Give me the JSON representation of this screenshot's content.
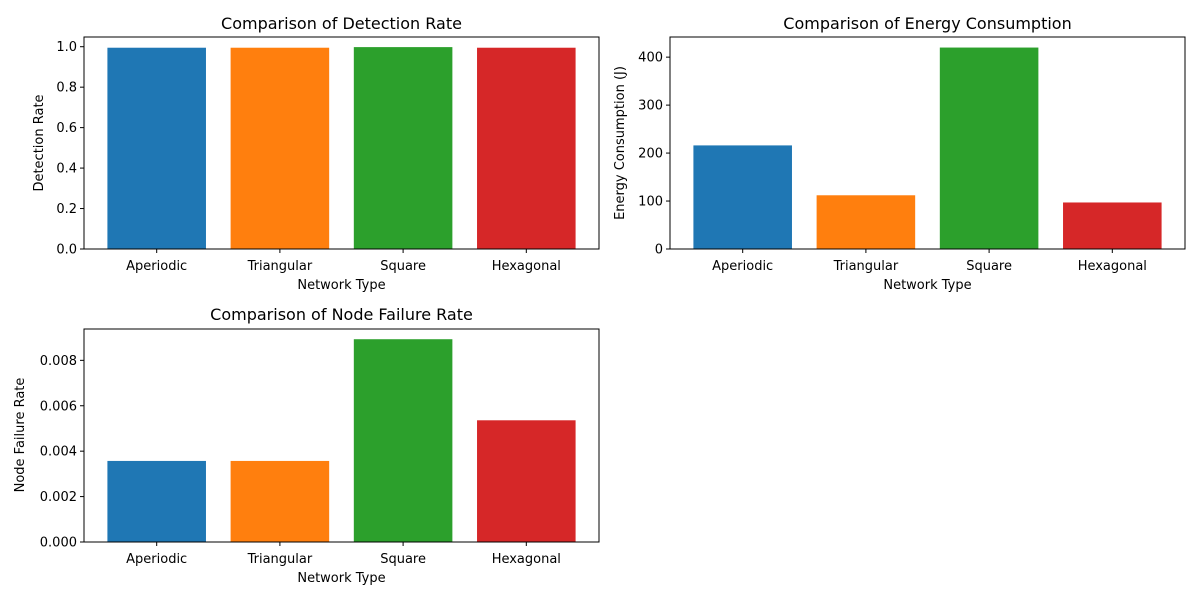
{
  "figure": {
    "background": "#ffffff"
  },
  "chart_data": [
    {
      "type": "bar",
      "title": "Comparison of Detection Rate",
      "xlabel": "Network Type",
      "ylabel": "Detection Rate",
      "categories": [
        "Aperiodic",
        "Triangular",
        "Square",
        "Hexagonal"
      ],
      "values": [
        0.995,
        0.995,
        0.998,
        0.995
      ],
      "colors": [
        "#1f77b4",
        "#ff7f0e",
        "#2ca02c",
        "#d62728"
      ],
      "ylim": [
        0,
        1.048
      ],
      "yticks": [
        0.0,
        0.2,
        0.4,
        0.6,
        0.8,
        1.0
      ],
      "ytick_labels": [
        "0.0",
        "0.2",
        "0.4",
        "0.6",
        "0.8",
        "1.0"
      ],
      "grid": false
    },
    {
      "type": "bar",
      "title": "Comparison of Energy Consumption",
      "xlabel": "Network Type",
      "ylabel": "Energy Consumption (J)",
      "categories": [
        "Aperiodic",
        "Triangular",
        "Square",
        "Hexagonal"
      ],
      "values": [
        216,
        112,
        420,
        97
      ],
      "colors": [
        "#1f77b4",
        "#ff7f0e",
        "#2ca02c",
        "#d62728"
      ],
      "ylim": [
        0,
        442
      ],
      "yticks": [
        0,
        100,
        200,
        300,
        400
      ],
      "ytick_labels": [
        "0",
        "100",
        "200",
        "300",
        "400"
      ],
      "grid": false
    },
    {
      "type": "bar",
      "title": "Comparison of Node Failure Rate",
      "xlabel": "Network Type",
      "ylabel": "Node Failure Rate",
      "categories": [
        "Aperiodic",
        "Triangular",
        "Square",
        "Hexagonal"
      ],
      "values": [
        0.00357,
        0.00357,
        0.00893,
        0.00536
      ],
      "colors": [
        "#1f77b4",
        "#ff7f0e",
        "#2ca02c",
        "#d62728"
      ],
      "ylim": [
        0,
        0.00938
      ],
      "yticks": [
        0.0,
        0.002,
        0.004,
        0.006,
        0.008
      ],
      "ytick_labels": [
        "0.000",
        "0.002",
        "0.004",
        "0.006",
        "0.008"
      ],
      "grid": false
    }
  ]
}
